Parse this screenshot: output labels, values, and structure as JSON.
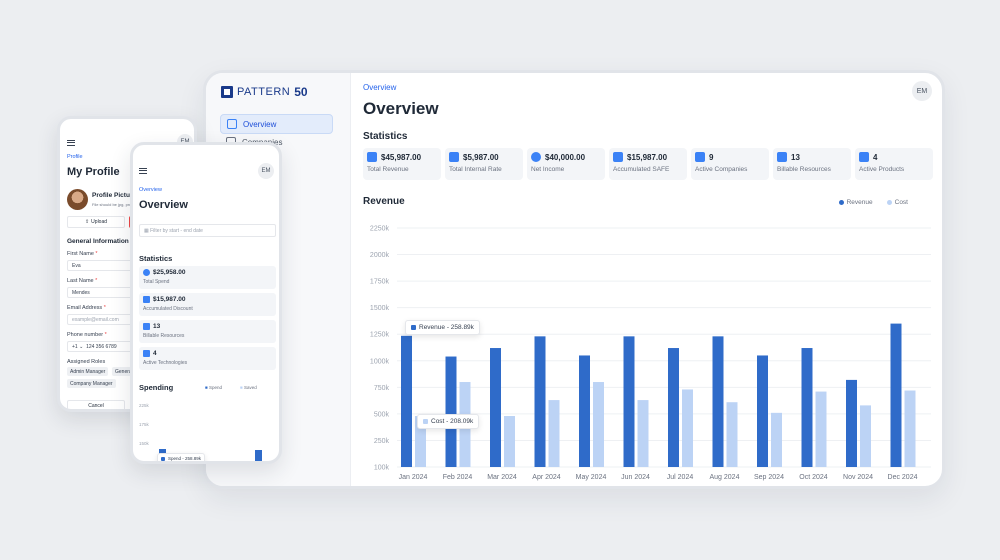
{
  "desktop": {
    "logo": {
      "text": "PATTERN",
      "number": "50"
    },
    "nav": [
      {
        "label": "Overview",
        "active": true
      },
      {
        "label": "Companies",
        "active": false
      }
    ],
    "breadcrumb": "Overview",
    "title": "Overview",
    "avatar": "EM",
    "statistics_heading": "Statistics",
    "stats": [
      {
        "value": "$45,987.00",
        "label": "Total Revenue",
        "icon": "document-icon"
      },
      {
        "value": "$5,987.00",
        "label": "Total Internal Rate",
        "icon": "cash-icon"
      },
      {
        "value": "$40,000.00",
        "label": "Net Income",
        "icon": "dollar-icon"
      },
      {
        "value": "$15,987.00",
        "label": "Accumulated SAFE",
        "icon": "receipt-icon"
      },
      {
        "value": "9",
        "label": "Active Companies",
        "icon": "building-icon"
      },
      {
        "value": "13",
        "label": "Billable Resources",
        "icon": "people-icon"
      },
      {
        "value": "4",
        "label": "Active Products",
        "icon": "monitor-icon"
      }
    ],
    "revenue_heading": "Revenue",
    "legend": {
      "revenue": "Revenue",
      "cost": "Cost"
    },
    "tooltips": {
      "revenue": "Revenue - 258.89k",
      "cost": "Cost - 208.09k"
    }
  },
  "chart_data": {
    "type": "bar",
    "categories": [
      "Jan 2024",
      "Feb 2024",
      "Mar 2024",
      "Apr 2024",
      "May 2024",
      "Jun 2024",
      "Jul 2024",
      "Aug 2024",
      "Sep 2024",
      "Oct 2024",
      "Nov 2024",
      "Dec 2024"
    ],
    "series": [
      {
        "name": "Revenue",
        "color": "#2f6bc9",
        "values": [
          1235,
          1040,
          1120,
          1230,
          1050,
          1230,
          1120,
          1230,
          1050,
          1120,
          820,
          1350
        ]
      },
      {
        "name": "Cost",
        "color": "#bcd3f5",
        "values": [
          480,
          800,
          480,
          630,
          800,
          630,
          730,
          610,
          510,
          710,
          580,
          720
        ]
      }
    ],
    "y_ticks": [
      "100k",
      "250k",
      "500k",
      "750k",
      "1000k",
      "1250k",
      "1500k",
      "1750k",
      "2000k",
      "2250k"
    ],
    "ylim": [
      100,
      2250
    ],
    "grid": true,
    "legend_position": "top-right"
  },
  "phone_profile": {
    "avatar": "EM",
    "breadcrumb": "Profile",
    "title": "My Profile",
    "picture_heading": "Profile Picture",
    "picture_hint": "File should be jpg, png",
    "upload_label": "Upload",
    "general_heading": "General Information",
    "first_name_label": "First Name",
    "first_name_value": "Eva",
    "last_name_label": "Last Name",
    "last_name_value": "Mendes",
    "email_label": "Email Address",
    "email_placeholder": "example@email.com",
    "phone_label": "Phone number",
    "phone_code": "+1",
    "phone_value": "124 356 6789",
    "roles_label": "Assigned Roles",
    "roles": [
      "Admin Manager",
      "General",
      "Company Manager"
    ],
    "cancel_label": "Cancel",
    "required_mark": "*"
  },
  "phone_overview": {
    "avatar": "EM",
    "breadcrumb": "Overview",
    "title": "Overview",
    "filter_placeholder": "Filter by start - end date",
    "statistics_heading": "Statistics",
    "stats": [
      {
        "value": "$25,958.00",
        "label": "Total Spend"
      },
      {
        "value": "$15,987.00",
        "label": "Accumulated Discount"
      },
      {
        "value": "13",
        "label": "Billable Resources"
      },
      {
        "value": "4",
        "label": "Active Technologies"
      }
    ],
    "spending_heading": "Spending",
    "legend": {
      "spend": "Spend",
      "saved": "Saved"
    },
    "y_ticks": [
      "225k",
      "175k",
      "150k"
    ],
    "tooltip": "Spend - 258.89k"
  }
}
